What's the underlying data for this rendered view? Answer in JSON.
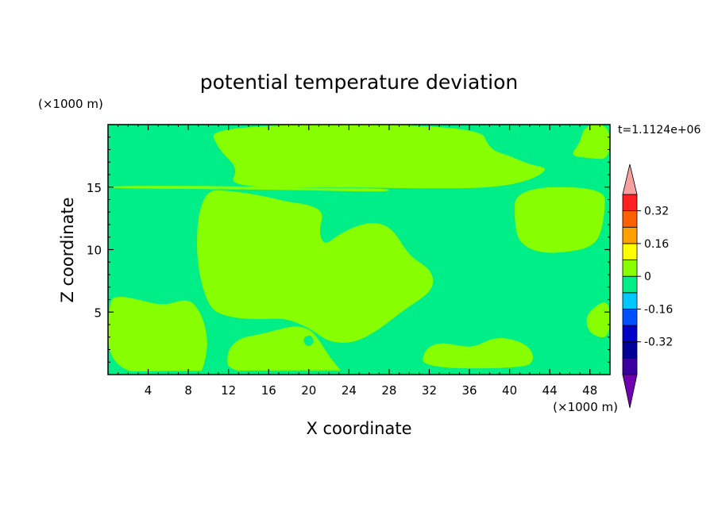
{
  "chart_data": {
    "type": "heatmap",
    "title": "potential temperature deviation",
    "xlabel": "X coordinate",
    "ylabel": "Z coordinate",
    "x_unit": "(×1000 m)",
    "y_unit": "(×1000 m)",
    "time_label": "t=1.1124e+06",
    "xlim": [
      0,
      50
    ],
    "ylim": [
      0,
      20
    ],
    "x_ticks": [
      4,
      8,
      12,
      16,
      20,
      24,
      28,
      32,
      36,
      40,
      44,
      48
    ],
    "y_ticks": [
      5,
      10,
      15
    ],
    "colorbar": {
      "levels": [
        {
          "lo": -0.48,
          "hi": -0.4,
          "color": "#3a00a0"
        },
        {
          "lo": -0.4,
          "hi": -0.32,
          "color": "#000098"
        },
        {
          "lo": -0.32,
          "hi": -0.24,
          "color": "#0000c8"
        },
        {
          "lo": -0.24,
          "hi": -0.16,
          "color": "#0050ff"
        },
        {
          "lo": -0.16,
          "hi": -0.08,
          "color": "#00c8ff"
        },
        {
          "lo": -0.08,
          "hi": 0.0,
          "color": "#00ee88"
        },
        {
          "lo": 0.0,
          "hi": 0.08,
          "color": "#88ff00"
        },
        {
          "lo": 0.08,
          "hi": 0.16,
          "color": "#ffff00"
        },
        {
          "lo": 0.16,
          "hi": 0.24,
          "color": "#ffa000"
        },
        {
          "lo": 0.24,
          "hi": 0.32,
          "color": "#ff6000"
        },
        {
          "lo": 0.32,
          "hi": 0.4,
          "color": "#ff2020"
        }
      ],
      "under_color": "#7000b0",
      "over_color": "#f8a0a0",
      "tick_labels": [
        "0.32",
        "0.16",
        "0",
        "-0.16",
        "-0.32"
      ],
      "tick_values": [
        0.32,
        0.16,
        0.0,
        -0.16,
        -0.32
      ]
    },
    "field": {
      "background_color": "#00ee88",
      "regions": [
        {
          "label": "top band",
          "color": "#88ff00",
          "points": [
            [
              10,
              20
            ],
            [
              11,
              18
            ],
            [
              13,
              16.5
            ],
            [
              12,
              15
            ],
            [
              22,
              15
            ],
            [
              30,
              14.9
            ],
            [
              38,
              14.9
            ],
            [
              42,
              15.5
            ],
            [
              44,
              16.5
            ],
            [
              42,
              16.8
            ],
            [
              40,
              17.5
            ],
            [
              38,
              18
            ],
            [
              37,
              20
            ]
          ]
        },
        {
          "label": "top right lobe",
          "color": "#88ff00",
          "points": [
            [
              47.5,
              20
            ],
            [
              47,
              18.5
            ],
            [
              46,
              17.5
            ],
            [
              48,
              17.3
            ],
            [
              50,
              17.2
            ],
            [
              50,
              20
            ]
          ]
        },
        {
          "label": "level 15 strip",
          "color": "#88ff00",
          "points": [
            [
              0,
              15.1
            ],
            [
              10,
              15.1
            ],
            [
              20,
              14.95
            ],
            [
              28,
              14.9
            ],
            [
              28,
              14.6
            ],
            [
              20,
              14.75
            ],
            [
              10,
              14.85
            ],
            [
              0,
              14.9
            ]
          ]
        },
        {
          "label": "right mid lobe",
          "color": "#88ff00",
          "points": [
            [
              40.5,
              15
            ],
            [
              40.5,
              12
            ],
            [
              41,
              10.5
            ],
            [
              43,
              9.7
            ],
            [
              46,
              9.8
            ],
            [
              48,
              10.2
            ],
            [
              49,
              11
            ],
            [
              49.5,
              13
            ],
            [
              49.5,
              15
            ]
          ]
        },
        {
          "label": "central blob",
          "color": "#88ff00",
          "points": [
            [
              10,
              14.8
            ],
            [
              9,
              13
            ],
            [
              8.8,
              10
            ],
            [
              9.2,
              7.5
            ],
            [
              10.2,
              5.2
            ],
            [
              12,
              4.6
            ],
            [
              14.5,
              4.4
            ],
            [
              17,
              4.5
            ],
            [
              18.5,
              4.3
            ],
            [
              20.5,
              3.5
            ],
            [
              22,
              2.6
            ],
            [
              24.5,
              2.5
            ],
            [
              27,
              3.6
            ],
            [
              29.5,
              5.2
            ],
            [
              32,
              6.5
            ],
            [
              32.5,
              7.5
            ],
            [
              32,
              8.5
            ],
            [
              30,
              9.5
            ],
            [
              28.5,
              11.5
            ],
            [
              27,
              12.2
            ],
            [
              25,
              12
            ],
            [
              23,
              11.2
            ],
            [
              21.5,
              10.3
            ],
            [
              21,
              11.5
            ],
            [
              21.5,
              13
            ],
            [
              20,
              13.6
            ],
            [
              18,
              13.8
            ],
            [
              16,
              14.2
            ],
            [
              14,
              14.5
            ],
            [
              12,
              14.7
            ]
          ]
        },
        {
          "label": "left lower blob",
          "color": "#88ff00",
          "points": [
            [
              0,
              0
            ],
            [
              0,
              6
            ],
            [
              1.2,
              6.3
            ],
            [
              3,
              6
            ],
            [
              5.5,
              5.5
            ],
            [
              7.5,
              6
            ],
            [
              8.5,
              5.8
            ],
            [
              9.5,
              4.5
            ],
            [
              10,
              2.5
            ],
            [
              9.5,
              0.5
            ],
            [
              9,
              0
            ]
          ]
        },
        {
          "label": "bottom middle blob",
          "color": "#88ff00",
          "points": [
            [
              12,
              0
            ],
            [
              11.8,
              1.8
            ],
            [
              13,
              2.9
            ],
            [
              15,
              3.2
            ],
            [
              17,
              3.6
            ],
            [
              18.5,
              3.9
            ],
            [
              20,
              3.7
            ],
            [
              21,
              2.8
            ],
            [
              22,
              1.5
            ],
            [
              23,
              0.5
            ],
            [
              23.5,
              0
            ]
          ]
        },
        {
          "label": "bottom right blob",
          "color": "#88ff00",
          "points": [
            [
              31.2,
              0.5
            ],
            [
              31.5,
              2
            ],
            [
              33,
              2.6
            ],
            [
              35,
              2.3
            ],
            [
              36.5,
              2.2
            ],
            [
              38.5,
              3
            ],
            [
              40.5,
              2.8
            ],
            [
              42,
              2.2
            ],
            [
              42.5,
              1.2
            ],
            [
              41.5,
              0.5
            ]
          ]
        },
        {
          "label": "right edge lobe",
          "color": "#88ff00",
          "points": [
            [
              50,
              6
            ],
            [
              48.5,
              5.5
            ],
            [
              47.5,
              4.5
            ],
            [
              48,
              3.2
            ],
            [
              50,
              2.8
            ]
          ]
        }
      ],
      "holes": [
        {
          "label": "bottom strip",
          "color": "#00ee88",
          "points": [
            [
              0,
              0
            ],
            [
              50,
              0
            ],
            [
              50,
              0.3
            ],
            [
              30,
              0.35
            ],
            [
              0,
              0.3
            ]
          ]
        },
        {
          "label": "small hole",
          "color": "#00ee88",
          "points": [
            [
              19.5,
              3.0
            ],
            [
              20.2,
              3.2
            ],
            [
              20.6,
              2.6
            ],
            [
              20,
              2.2
            ],
            [
              19.5,
              2.5
            ]
          ]
        }
      ]
    }
  }
}
